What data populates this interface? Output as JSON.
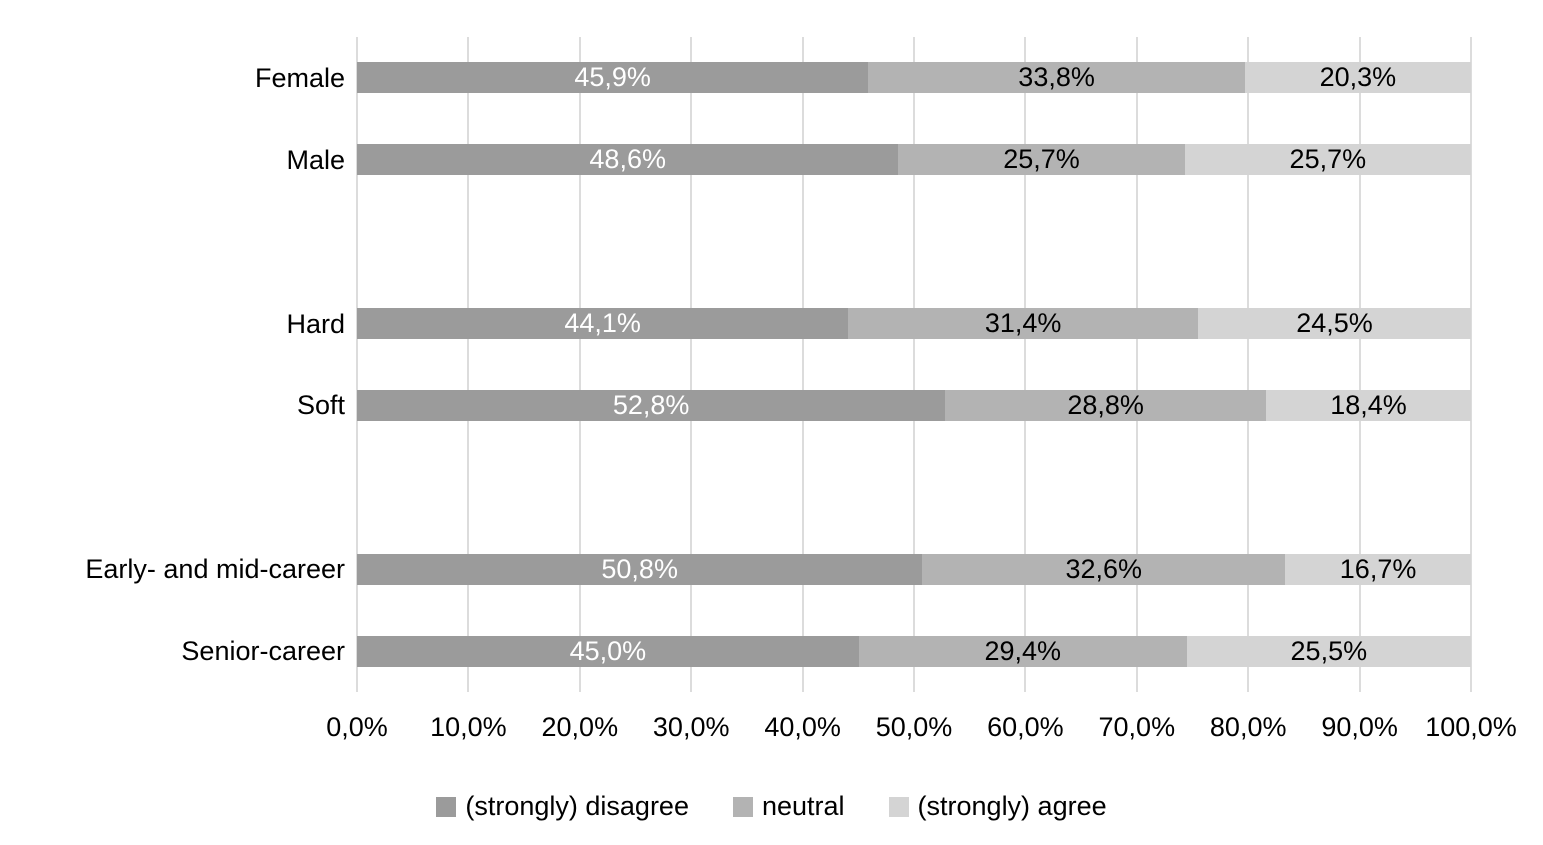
{
  "chart_data": {
    "type": "bar",
    "orientation": "horizontal",
    "stacked": true,
    "unit": "%",
    "decimal_separator": ",",
    "background": "#ffffff",
    "gridline_color": "#dcdcdc",
    "categories": [
      "Female",
      "Male",
      "Hard",
      "Soft",
      "Early- and mid-career",
      "Senior-career"
    ],
    "row_slots": [
      0,
      1,
      null,
      2,
      3,
      null,
      4,
      5
    ],
    "series": [
      {
        "name": "(strongly) disagree",
        "color": "#9b9b9b",
        "label_color": "#ffffff",
        "values": [
          45.9,
          48.6,
          44.1,
          52.8,
          50.8,
          45.0
        ],
        "labels": [
          "45,9%",
          "48,6%",
          "44,1%",
          "52,8%",
          "50,8%",
          "45,0%"
        ]
      },
      {
        "name": "neutral",
        "color": "#b3b3b3",
        "label_color": "#000000",
        "values": [
          33.8,
          25.7,
          31.4,
          28.8,
          32.6,
          29.4
        ],
        "labels": [
          "33,8%",
          "25,7%",
          "31,4%",
          "28,8%",
          "32,6%",
          "29,4%"
        ]
      },
      {
        "name": "(strongly) agree",
        "color": "#d4d4d4",
        "label_color": "#000000",
        "values": [
          20.3,
          25.7,
          24.5,
          18.4,
          16.7,
          25.5
        ],
        "labels": [
          "20,3%",
          "25,7%",
          "24,5%",
          "18,4%",
          "16,7%",
          "25,5%"
        ]
      }
    ],
    "x_axis": {
      "min": 0,
      "max": 100,
      "tick_step": 10,
      "grid": true,
      "tick_labels": [
        "0,0%",
        "10,0%",
        "20,0%",
        "30,0%",
        "40,0%",
        "50,0%",
        "60,0%",
        "70,0%",
        "80,0%",
        "90,0%",
        "100,0%"
      ]
    },
    "legend": {
      "position": "bottom"
    }
  }
}
